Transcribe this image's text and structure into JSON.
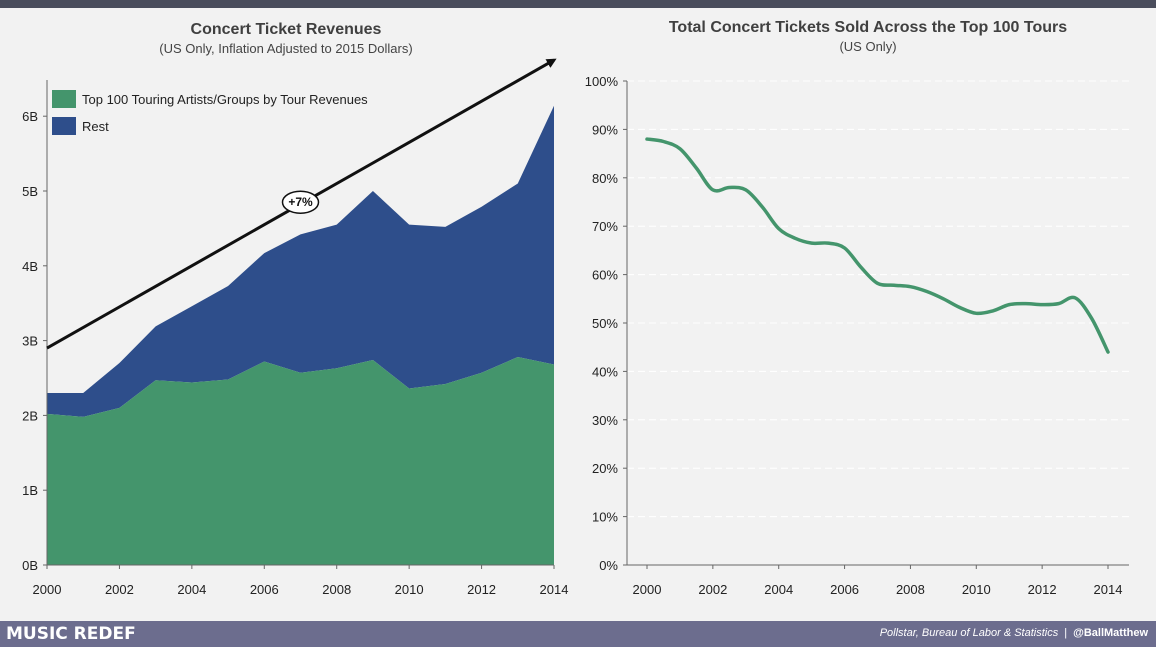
{
  "chart_data": [
    {
      "type": "area",
      "title": "Concert Ticket Revenues",
      "subtitle": "(US Only, Inflation Adjusted to 2015 Dollars)",
      "x": [
        2000,
        2001,
        2002,
        2003,
        2004,
        2005,
        2006,
        2007,
        2008,
        2009,
        2010,
        2011,
        2012,
        2013,
        2014
      ],
      "x_tick_labels": [
        "2000",
        "2002",
        "2004",
        "2006",
        "2008",
        "2010",
        "2012",
        "2014"
      ],
      "y_tick_labels": [
        "0B",
        "1B",
        "2B",
        "3B",
        "4B",
        "5B",
        "6B"
      ],
      "ylim": [
        0,
        6.5
      ],
      "stacked": true,
      "series": [
        {
          "name": "Top 100 Touring Artists/Groups by Tour Revenues",
          "color": "#44956c",
          "values": [
            2.02,
            1.98,
            2.1,
            2.47,
            2.44,
            2.48,
            2.72,
            2.57,
            2.63,
            2.74,
            2.36,
            2.42,
            2.57,
            2.78,
            2.68
          ]
        },
        {
          "name": "Rest",
          "color": "#2e4e8b",
          "values": [
            0.28,
            0.32,
            0.6,
            0.72,
            1.02,
            1.25,
            1.45,
            1.85,
            1.92,
            2.26,
            2.19,
            2.1,
            2.22,
            2.32,
            3.46
          ]
        }
      ],
      "totals": [
        2.3,
        2.3,
        2.7,
        3.19,
        3.46,
        3.73,
        4.17,
        4.42,
        4.55,
        5.0,
        4.55,
        4.52,
        4.79,
        5.1,
        6.14
      ],
      "trend_label": "+7%",
      "trend_start": {
        "x": 2000,
        "y": 2.9
      },
      "trend_end": {
        "x": 2014,
        "y": 6.75
      },
      "trend_label_at": {
        "x": 2007,
        "y": 4.85
      },
      "legend_position": "top-left"
    },
    {
      "type": "line",
      "title": "Total Concert Tickets Sold Across the Top 100 Tours",
      "subtitle": "(US Only)",
      "x": [
        2000,
        2000.5,
        2001,
        2001.5,
        2002,
        2002.5,
        2003,
        2003.5,
        2004,
        2004.5,
        2005,
        2005.5,
        2006,
        2006.5,
        2007,
        2007.5,
        2008,
        2008.5,
        2009,
        2009.5,
        2010,
        2010.5,
        2011,
        2011.5,
        2012,
        2012.5,
        2013,
        2013.5,
        2014
      ],
      "values": [
        88,
        87.5,
        86,
        82,
        77.5,
        78,
        77.5,
        74,
        69.5,
        67.5,
        66.5,
        66.5,
        65.5,
        61.5,
        58.2,
        57.8,
        57.5,
        56.5,
        55,
        53.2,
        52,
        52.5,
        53.8,
        54,
        53.8,
        54,
        55.2,
        51,
        44
      ],
      "x_tick_labels": [
        "2000",
        "2002",
        "2004",
        "2006",
        "2008",
        "2010",
        "2012",
        "2014"
      ],
      "y_tick_labels": [
        "0%",
        "10%",
        "20%",
        "30%",
        "40%",
        "50%",
        "60%",
        "70%",
        "80%",
        "90%",
        "100%"
      ],
      "ylim": [
        0,
        100
      ],
      "color": "#44956c",
      "grid": true
    }
  ],
  "footer": {
    "brand": "MUSIC REDEF",
    "source": "Pollstar, Bureau of Labor & Statistics",
    "separator": "|",
    "handle": "@BallMatthew"
  }
}
